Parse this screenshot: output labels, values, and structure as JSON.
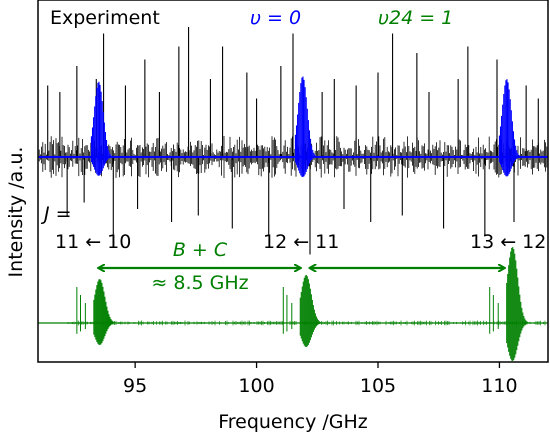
{
  "chart_data": {
    "type": "line",
    "xlabel": "Frequency /GHz",
    "ylabel": "Intensity /a.u.",
    "xlim": [
      91,
      112
    ],
    "x_ticks": [
      "95",
      "100",
      "105",
      "110"
    ],
    "x_tick_values": [
      95,
      100,
      105,
      110
    ],
    "y_ticks": [],
    "grid": false,
    "series": [
      {
        "name": "Experiment",
        "color": "#000000",
        "role": "measured spectrum (dense, positive and negative lines)",
        "strong_lines": [
          {
            "x": 91.4,
            "y": 0.55
          },
          {
            "x": 91.9,
            "y": 0.5
          },
          {
            "x": 92.2,
            "y": -0.45
          },
          {
            "x": 92.6,
            "y": 0.7
          },
          {
            "x": 92.9,
            "y": -0.35
          },
          {
            "x": 93.4,
            "y": 0.6
          },
          {
            "x": 93.7,
            "y": 0.95
          },
          {
            "x": 94.1,
            "y": -0.7
          },
          {
            "x": 94.6,
            "y": 0.55
          },
          {
            "x": 95.1,
            "y": -0.4
          },
          {
            "x": 95.4,
            "y": 0.75
          },
          {
            "x": 96.0,
            "y": 0.5
          },
          {
            "x": 96.5,
            "y": -0.5
          },
          {
            "x": 96.8,
            "y": 0.85
          },
          {
            "x": 97.2,
            "y": 1.0
          },
          {
            "x": 97.6,
            "y": -0.45
          },
          {
            "x": 98.1,
            "y": 0.6
          },
          {
            "x": 98.6,
            "y": 0.85
          },
          {
            "x": 99.0,
            "y": -0.55
          },
          {
            "x": 99.6,
            "y": 0.65
          },
          {
            "x": 100.0,
            "y": 0.45
          },
          {
            "x": 100.5,
            "y": -0.6
          },
          {
            "x": 101.0,
            "y": 0.7
          },
          {
            "x": 101.5,
            "y": 0.95
          },
          {
            "x": 102.2,
            "y": -0.75
          },
          {
            "x": 102.7,
            "y": 0.5
          },
          {
            "x": 103.2,
            "y": 0.6
          },
          {
            "x": 103.6,
            "y": -0.4
          },
          {
            "x": 104.1,
            "y": 0.55
          },
          {
            "x": 104.7,
            "y": -0.5
          },
          {
            "x": 105.0,
            "y": 0.65
          },
          {
            "x": 105.6,
            "y": 0.95
          },
          {
            "x": 106.0,
            "y": -0.45
          },
          {
            "x": 106.6,
            "y": 0.8
          },
          {
            "x": 107.1,
            "y": 0.5
          },
          {
            "x": 107.7,
            "y": -0.55
          },
          {
            "x": 108.3,
            "y": 0.6
          },
          {
            "x": 108.7,
            "y": 0.85
          },
          {
            "x": 109.4,
            "y": -0.6
          },
          {
            "x": 109.9,
            "y": 0.75
          },
          {
            "x": 110.6,
            "y": -0.5
          },
          {
            "x": 111.1,
            "y": 0.55
          },
          {
            "x": 111.6,
            "y": 0.45
          }
        ]
      },
      {
        "name": "υ = 0",
        "color": "#0000ff",
        "role": "simulated rotational transitions, ground state",
        "line_groups": [
          {
            "start": 93.2,
            "end": 94.4,
            "peak": 0.58
          },
          {
            "start": 101.6,
            "end": 102.8,
            "peak": 0.62
          },
          {
            "start": 110.0,
            "end": 111.2,
            "peak": 0.6
          }
        ]
      },
      {
        "name": "υ24 = 1",
        "color": "#008000",
        "role": "simulated rotational transitions, vibrationally excited state",
        "line_groups": [
          {
            "start": 93.3,
            "end": 94.5,
            "peak": 0.55
          },
          {
            "start": 101.8,
            "end": 103.0,
            "peak": 0.6
          },
          {
            "start": 110.3,
            "end": 111.5,
            "peak": 0.95
          }
        ]
      }
    ],
    "annotations": {
      "j_label": "J =",
      "transitions": [
        {
          "label": "11 ← 10",
          "x": 93.5
        },
        {
          "label": "12 ← 11",
          "x": 101.8
        },
        {
          "label": "13 ← 12",
          "x": 110.3
        }
      ],
      "spacing_arrows": [
        {
          "from": 93.5,
          "to": 101.8
        },
        {
          "from": 102.2,
          "to": 110.2
        }
      ],
      "spacing_label_1": "B + C",
      "spacing_label_2": "≈ 8.5 GHz"
    }
  }
}
